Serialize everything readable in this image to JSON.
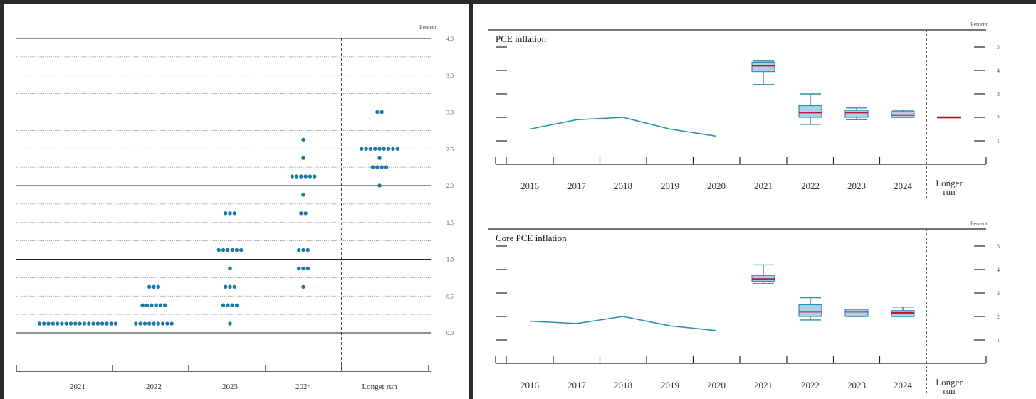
{
  "chart_data": [
    {
      "type": "scatter",
      "name": "",
      "unit_label": "Percent",
      "y_ticks": [
        "4.0",
        "3.5",
        "3.0",
        "2.5",
        "2.0",
        "1.5",
        "1.0",
        "0.5",
        "0.0"
      ],
      "ylim": [
        0,
        4
      ],
      "x_labels": [
        "2021",
        "2022",
        "2023",
        "2024",
        "Longer run"
      ],
      "dots": {
        "2021": [
          {
            "value": 0.125,
            "count": 18
          }
        ],
        "2022": [
          {
            "value": 0.125,
            "count": 9
          },
          {
            "value": 0.375,
            "count": 6
          },
          {
            "value": 0.625,
            "count": 3
          }
        ],
        "2023": [
          {
            "value": 0.125,
            "count": 1
          },
          {
            "value": 0.375,
            "count": 4
          },
          {
            "value": 0.625,
            "count": 3
          },
          {
            "value": 0.875,
            "count": 1
          },
          {
            "value": 1.125,
            "count": 6
          },
          {
            "value": 1.625,
            "count": 3
          }
        ],
        "2024": [
          {
            "value": 0.625,
            "count": 1
          },
          {
            "value": 0.875,
            "count": 3
          },
          {
            "value": 1.125,
            "count": 3
          },
          {
            "value": 1.625,
            "count": 2
          },
          {
            "value": 1.875,
            "count": 1
          },
          {
            "value": 2.125,
            "count": 6
          },
          {
            "value": 2.375,
            "count": 1
          },
          {
            "value": 2.625,
            "count": 1
          }
        ],
        "Longer run": [
          {
            "value": 2.0,
            "count": 1
          },
          {
            "value": 2.25,
            "count": 4
          },
          {
            "value": 2.375,
            "count": 1
          },
          {
            "value": 2.5,
            "count": 9
          },
          {
            "value": 3.0,
            "count": 2
          }
        ]
      },
      "dot_color": "#1a78a8",
      "divider": "dashed"
    },
    {
      "type": "line",
      "title": "PCE inflation",
      "unit_label": "Percent",
      "y_ticks": [
        "5",
        "4",
        "3",
        "2",
        "1"
      ],
      "ylim": [
        0,
        5.5
      ],
      "x_labels": [
        "2016",
        "2017",
        "2018",
        "2019",
        "2020",
        "2021",
        "2022",
        "2023",
        "2024",
        "Longer run"
      ],
      "history": {
        "x": [
          "2016",
          "2017",
          "2018",
          "2019",
          "2020"
        ],
        "values": [
          1.5,
          1.9,
          2.0,
          1.5,
          1.2
        ]
      },
      "projections": [
        {
          "x": "2021",
          "whisker_low": 3.4,
          "box_low": 3.95,
          "median": 4.2,
          "box_high": 4.35,
          "whisker_high": 4.4
        },
        {
          "x": "2022",
          "whisker_low": 1.7,
          "box_low": 2.0,
          "median": 2.2,
          "box_high": 2.5,
          "whisker_high": 3.0
        },
        {
          "x": "2023",
          "whisker_low": 1.9,
          "box_low": 2.0,
          "median": 2.2,
          "box_high": 2.3,
          "whisker_high": 2.4
        },
        {
          "x": "2024",
          "whisker_low": 2.0,
          "box_low": 2.0,
          "median": 2.1,
          "box_high": 2.25,
          "whisker_high": 2.3
        }
      ],
      "longer_run": 2.0,
      "line_color": "#2f8fb0",
      "box_fill": "#a9d2ea",
      "median_color": "#c0183a"
    },
    {
      "type": "line",
      "title": "Core PCE inflation",
      "unit_label": "Percent",
      "y_ticks": [
        "5",
        "4",
        "3",
        "2",
        "1"
      ],
      "ylim": [
        0,
        5.5
      ],
      "x_labels": [
        "2016",
        "2017",
        "2018",
        "2019",
        "2020",
        "2021",
        "2022",
        "2023",
        "2024",
        "Longer run"
      ],
      "history": {
        "x": [
          "2016",
          "2017",
          "2018",
          "2019",
          "2020"
        ],
        "values": [
          1.8,
          1.7,
          2.0,
          1.6,
          1.4
        ]
      },
      "projections": [
        {
          "x": "2021",
          "whisker_low": 3.4,
          "box_low": 3.5,
          "median": 3.6,
          "box_high": 3.75,
          "whisker_high": 4.2
        },
        {
          "x": "2022",
          "whisker_low": 1.85,
          "box_low": 2.0,
          "median": 2.2,
          "box_high": 2.5,
          "whisker_high": 2.8
        },
        {
          "x": "2023",
          "whisker_low": 2.0,
          "box_low": 2.0,
          "median": 2.2,
          "box_high": 2.3,
          "whisker_high": 2.3
        },
        {
          "x": "2024",
          "whisker_low": 2.0,
          "box_low": 2.0,
          "median": 2.15,
          "box_high": 2.25,
          "whisker_high": 2.4
        }
      ],
      "longer_run": null,
      "line_color": "#2f8fb0",
      "box_fill": "#a9d2ea",
      "median_color": "#c0183a"
    }
  ]
}
